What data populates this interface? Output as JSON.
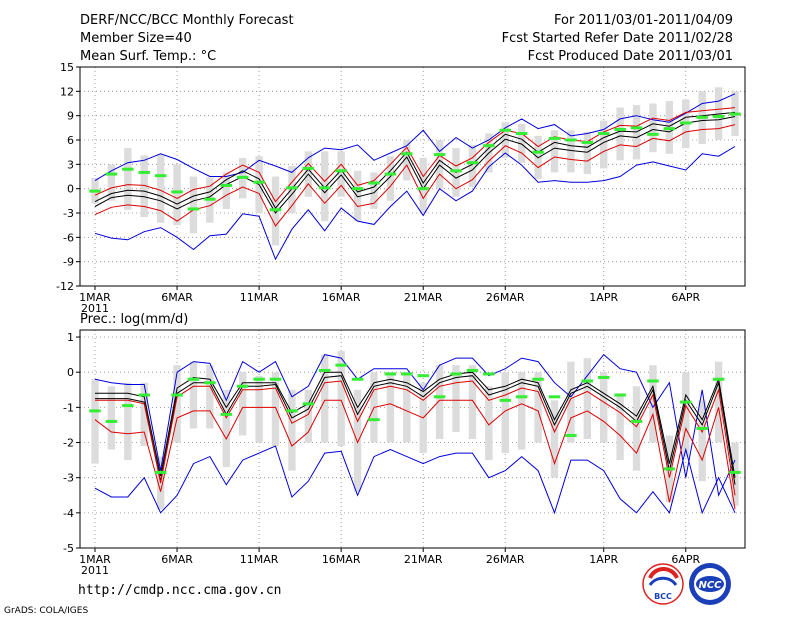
{
  "header": {
    "title": "DERF/NCC/BCC Monthly Forecast",
    "member_size": "Member Size=40",
    "variable_top": "Mean Surf. Temp.: °C",
    "period": "For 2011/03/01-2011/04/09",
    "refer_date": "Fcst Started Refer Date 2011/02/28",
    "produced_date": "Fcst Produced Date 2011/03/01"
  },
  "footer": {
    "url": "http://cmdp.ncc.cma.gov.cn",
    "grads": "GrADS: COLA/IGES",
    "logo_left_text": "BCC",
    "logo_right_text": "NCC"
  },
  "colors": {
    "spread": "#dcdcdc",
    "bound": "#0000dd",
    "red": "#dd0000",
    "mean": "#000000",
    "marker": "#33ee33",
    "grid": "#888888"
  },
  "chart_data": [
    {
      "type": "line",
      "title": "Mean Surf. Temp.: °C",
      "days": 40,
      "x_ticks": [
        {
          "day": 1,
          "label": "1MAR",
          "sub": "2011"
        },
        {
          "day": 6,
          "label": "6MAR"
        },
        {
          "day": 11,
          "label": "11MAR"
        },
        {
          "day": 16,
          "label": "16MAR"
        },
        {
          "day": 21,
          "label": "21MAR"
        },
        {
          "day": 26,
          "label": "26MAR"
        },
        {
          "day": 32,
          "label": "1APR"
        },
        {
          "day": 37,
          "label": "6APR"
        }
      ],
      "ylim": [
        -12,
        15
      ],
      "y_ticks": [
        -12,
        -9,
        -6,
        -3,
        0,
        3,
        6,
        9,
        12,
        15
      ],
      "series": [
        {
          "name": "upper",
          "values": [
            1.0,
            2.2,
            3.2,
            3.5,
            4.3,
            3.6,
            2.5,
            1.5,
            1.5,
            2.0,
            3.5,
            2.8,
            2.0,
            3.8,
            5.0,
            4.8,
            5.4,
            3.5,
            4.4,
            5.3,
            7.2,
            4.6,
            6.3,
            5.0,
            6.0,
            7.5,
            8.6,
            7.4,
            7.9,
            6.5,
            6.8,
            7.3,
            8.6,
            9.0,
            8.5,
            8.2,
            9.3,
            10.5,
            10.8,
            11.7
          ]
        },
        {
          "name": "mean",
          "values": [
            -2.2,
            -1.1,
            -0.8,
            -1.0,
            -1.5,
            -2.5,
            -1.5,
            -1.0,
            0.5,
            1.5,
            0.5,
            -3.0,
            -0.7,
            1.8,
            -0.5,
            1.7,
            -1.0,
            -0.5,
            1.5,
            3.9,
            0.0,
            2.9,
            1.3,
            2.3,
            4.4,
            6.1,
            5.5,
            3.8,
            5.0,
            4.7,
            4.5,
            5.7,
            6.5,
            6.3,
            7.3,
            7.0,
            8.1,
            8.4,
            8.5,
            8.9
          ]
        },
        {
          "name": "black2",
          "values": [
            -1.6,
            -0.6,
            -0.2,
            -0.3,
            -0.9,
            -1.9,
            -0.9,
            -0.4,
            1.1,
            2.2,
            1.2,
            -2.4,
            0.0,
            2.4,
            0.1,
            2.3,
            -0.4,
            0.2,
            2.2,
            4.5,
            0.7,
            3.5,
            2.0,
            3.0,
            5.0,
            6.7,
            6.1,
            4.5,
            5.7,
            5.3,
            5.1,
            6.3,
            7.1,
            7.0,
            8.0,
            7.7,
            8.8,
            9.0,
            9.2,
            9.4
          ]
        },
        {
          "name": "red_upper",
          "values": [
            -0.8,
            0.1,
            0.5,
            0.4,
            -0.2,
            -1.2,
            -0.1,
            0.3,
            1.8,
            2.9,
            2.0,
            -1.6,
            0.8,
            3.1,
            0.9,
            3.0,
            0.4,
            1.0,
            3.0,
            5.1,
            1.5,
            4.1,
            2.8,
            3.8,
            5.7,
            7.2,
            6.8,
            5.2,
            6.4,
            6.0,
            5.8,
            7.0,
            7.8,
            7.7,
            8.7,
            8.4,
            9.4,
            9.6,
            9.8,
            10.0
          ]
        },
        {
          "name": "red_lower",
          "values": [
            -3.2,
            -2.3,
            -2.0,
            -2.2,
            -2.7,
            -4.0,
            -2.6,
            -2.1,
            -0.8,
            0.2,
            -0.6,
            -4.6,
            -2.1,
            0.6,
            -1.8,
            0.4,
            -2.2,
            -1.8,
            0.3,
            2.9,
            -1.2,
            1.8,
            0.0,
            1.1,
            3.4,
            5.3,
            4.4,
            2.6,
            3.9,
            3.6,
            3.4,
            4.6,
            5.4,
            5.2,
            6.2,
            5.9,
            7.0,
            7.3,
            7.4,
            7.9
          ]
        },
        {
          "name": "lower",
          "values": [
            -5.5,
            -6.1,
            -6.3,
            -5.3,
            -4.8,
            -6.0,
            -7.5,
            -5.8,
            -5.6,
            -3.1,
            -3.4,
            -8.7,
            -5.0,
            -2.6,
            -5.2,
            -2.4,
            -4.0,
            -4.4,
            -2.2,
            -0.3,
            -3.3,
            0.0,
            -1.5,
            -0.3,
            2.7,
            4.4,
            2.9,
            0.8,
            1.0,
            0.8,
            0.8,
            1.0,
            1.5,
            2.9,
            3.3,
            2.8,
            2.3,
            4.3,
            4.0,
            5.2
          ]
        }
      ],
      "spread_bars": [
        {
          "lo": -1.8,
          "hi": 1.3
        },
        {
          "lo": -1.5,
          "hi": 3.0
        },
        {
          "lo": -2.6,
          "hi": 5.0
        },
        {
          "lo": -3.5,
          "hi": 4.1
        },
        {
          "lo": -4.2,
          "hi": 4.2
        },
        {
          "lo": -4.5,
          "hi": 3.0
        },
        {
          "lo": -5.5,
          "hi": 1.5
        },
        {
          "lo": -4.2,
          "hi": 1.4
        },
        {
          "lo": -2.5,
          "hi": 2.0
        },
        {
          "lo": -1.2,
          "hi": 3.8
        },
        {
          "lo": -3.0,
          "hi": 4.0
        },
        {
          "lo": -7.0,
          "hi": 1.5
        },
        {
          "lo": -3.0,
          "hi": 2.8
        },
        {
          "lo": -1.0,
          "hi": 4.6
        },
        {
          "lo": -4.0,
          "hi": 4.6
        },
        {
          "lo": -1.0,
          "hi": 4.6
        },
        {
          "lo": -4.0,
          "hi": 2.2
        },
        {
          "lo": -2.5,
          "hi": 2.0
        },
        {
          "lo": -1.5,
          "hi": 4.0
        },
        {
          "lo": 1.0,
          "hi": 6.0
        },
        {
          "lo": -3.0,
          "hi": 3.8
        },
        {
          "lo": 0.0,
          "hi": 6.0
        },
        {
          "lo": -1.0,
          "hi": 5.0
        },
        {
          "lo": 0.2,
          "hi": 5.4
        },
        {
          "lo": 2.0,
          "hi": 6.8
        },
        {
          "lo": 3.8,
          "hi": 8.2
        },
        {
          "lo": 3.2,
          "hi": 8.0
        },
        {
          "lo": 1.2,
          "hi": 6.5
        },
        {
          "lo": 2.0,
          "hi": 7.2
        },
        {
          "lo": 2.0,
          "hi": 7.2
        },
        {
          "lo": 1.8,
          "hi": 7.0
        },
        {
          "lo": 2.5,
          "hi": 8.4
        },
        {
          "lo": 3.5,
          "hi": 10.0
        },
        {
          "lo": 3.6,
          "hi": 10.3
        },
        {
          "lo": 4.5,
          "hi": 10.5
        },
        {
          "lo": 4.3,
          "hi": 10.8
        },
        {
          "lo": 5.0,
          "hi": 11.0
        },
        {
          "lo": 5.5,
          "hi": 12.0
        },
        {
          "lo": 6.0,
          "hi": 12.5
        },
        {
          "lo": 6.5,
          "hi": 12.0
        }
      ],
      "markers": [
        -0.3,
        1.8,
        2.4,
        2.0,
        1.6,
        -0.4,
        -2.5,
        -1.3,
        0.4,
        1.4,
        0.8,
        -2.6,
        0.1,
        2.5,
        0.1,
        2.2,
        0.0,
        0.7,
        1.8,
        4.3,
        0.0,
        4.2,
        2.2,
        3.2,
        5.3,
        7.2,
        6.8,
        4.5,
        6.2,
        6.0,
        5.7,
        6.8,
        7.3,
        7.5,
        6.7,
        7.4,
        8.1,
        8.8,
        8.9,
        9.2
      ]
    },
    {
      "type": "line",
      "title": "Prec.: log(mm/d)",
      "days": 40,
      "x_ticks": [
        {
          "day": 1,
          "label": "1MAR",
          "sub": "2011"
        },
        {
          "day": 6,
          "label": "6MAR"
        },
        {
          "day": 11,
          "label": "11MAR"
        },
        {
          "day": 16,
          "label": "16MAR"
        },
        {
          "day": 21,
          "label": "21MAR"
        },
        {
          "day": 26,
          "label": "26MAR"
        },
        {
          "day": 32,
          "label": "1APR"
        },
        {
          "day": 37,
          "label": "6APR"
        }
      ],
      "ylim": [
        -5,
        1.2
      ],
      "y_ticks": [
        -5,
        -4,
        -3,
        -2,
        -1,
        0,
        1
      ],
      "series": [
        {
          "name": "upper",
          "values": [
            -0.2,
            -0.3,
            -0.35,
            -0.35,
            -2.8,
            0.0,
            0.3,
            0.25,
            -0.8,
            0.3,
            0.0,
            0.3,
            -0.7,
            -0.4,
            0.5,
            0.4,
            -0.2,
            0.1,
            0.1,
            0.1,
            -0.5,
            0.2,
            0.4,
            0.4,
            -0.1,
            0.1,
            0.4,
            0.3,
            -0.3,
            -0.7,
            -0.1,
            0.5,
            0.1,
            0.0,
            -1.0,
            -0.3,
            -3.0,
            -0.5,
            -3.5,
            -2.5
          ]
        },
        {
          "name": "black2",
          "values": [
            -0.6,
            -0.6,
            -0.6,
            -0.7,
            -2.95,
            -0.45,
            -0.15,
            -0.2,
            -1.0,
            -0.3,
            -0.3,
            -0.3,
            -1.15,
            -0.9,
            0.0,
            0.0,
            -1.0,
            -0.3,
            -0.2,
            -0.3,
            -0.55,
            -0.2,
            -0.05,
            0.0,
            -0.5,
            -0.4,
            -0.2,
            -0.3,
            -1.35,
            -0.5,
            -0.3,
            -0.6,
            -0.9,
            -1.25,
            -0.4,
            -2.6,
            -0.65,
            -1.35,
            -0.2,
            -3.0
          ]
        },
        {
          "name": "mean",
          "values": [
            -0.75,
            -0.75,
            -0.75,
            -0.85,
            -3.1,
            -0.6,
            -0.3,
            -0.3,
            -1.2,
            -0.4,
            -0.4,
            -0.35,
            -1.3,
            -1.05,
            -0.15,
            -0.1,
            -1.2,
            -0.4,
            -0.3,
            -0.4,
            -0.7,
            -0.3,
            -0.15,
            -0.1,
            -0.65,
            -0.5,
            -0.3,
            -0.4,
            -1.5,
            -0.6,
            -0.4,
            -0.7,
            -1.0,
            -1.4,
            -0.5,
            -2.8,
            -0.8,
            -1.5,
            -0.3,
            -3.2
          ]
        },
        {
          "name": "red_upper",
          "values": [
            -0.8,
            -0.8,
            -0.8,
            -0.9,
            -3.15,
            -0.7,
            -0.4,
            -0.4,
            -1.3,
            -0.5,
            -0.5,
            -0.45,
            -1.45,
            -1.2,
            -0.3,
            -0.25,
            -1.4,
            -0.5,
            -0.4,
            -0.5,
            -0.8,
            -0.4,
            -0.3,
            -0.25,
            -0.8,
            -0.65,
            -0.45,
            -0.55,
            -1.7,
            -0.75,
            -0.55,
            -0.85,
            -1.15,
            -1.55,
            -0.65,
            -3.0,
            -0.95,
            -1.7,
            -0.5,
            -3.5
          ]
        },
        {
          "name": "red_lower",
          "values": [
            -1.35,
            -1.7,
            -1.75,
            -1.7,
            -3.4,
            -1.3,
            -1.1,
            -1.1,
            -1.9,
            -1.0,
            -1.0,
            -1.0,
            -2.1,
            -1.7,
            -0.8,
            -0.8,
            -2.0,
            -1.0,
            -0.9,
            -1.1,
            -1.3,
            -0.8,
            -0.8,
            -0.8,
            -1.5,
            -1.1,
            -0.9,
            -1.1,
            -2.6,
            -1.3,
            -1.1,
            -1.4,
            -1.8,
            -2.3,
            -1.2,
            -3.7,
            -1.6,
            -2.5,
            -1.0,
            -3.9
          ]
        },
        {
          "name": "lower",
          "values": [
            -3.3,
            -3.55,
            -3.55,
            -3.0,
            -4.0,
            -3.5,
            -2.6,
            -2.4,
            -3.2,
            -2.5,
            -2.3,
            -2.1,
            -3.55,
            -3.1,
            -2.3,
            -2.25,
            -3.5,
            -2.4,
            -2.2,
            -2.4,
            -2.6,
            -2.4,
            -2.3,
            -2.3,
            -3.0,
            -2.8,
            -2.4,
            -2.8,
            -4.0,
            -2.5,
            -2.5,
            -2.8,
            -3.6,
            -4.0,
            -3.4,
            -4.0,
            -2.2,
            -4.0,
            -3.0,
            -4.0
          ]
        }
      ],
      "spread_bars": [
        {
          "lo": -2.6,
          "hi": -0.2
        },
        {
          "lo": -2.2,
          "hi": -0.4
        },
        {
          "lo": -2.5,
          "hi": -0.3
        },
        {
          "lo": -2.1,
          "hi": -0.3
        },
        {
          "lo": -3.9,
          "hi": -2.4
        },
        {
          "lo": -2.0,
          "hi": 0.2
        },
        {
          "lo": -1.6,
          "hi": 0.3
        },
        {
          "lo": -1.6,
          "hi": 0.2
        },
        {
          "lo": -2.7,
          "hi": -0.5
        },
        {
          "lo": -1.8,
          "hi": 0.0
        },
        {
          "lo": -2.0,
          "hi": -0.1
        },
        {
          "lo": -2.1,
          "hi": 0.0
        },
        {
          "lo": -2.8,
          "hi": -0.5
        },
        {
          "lo": -2.0,
          "hi": -0.5
        },
        {
          "lo": -2.0,
          "hi": 0.5
        },
        {
          "lo": -2.1,
          "hi": 0.6
        },
        {
          "lo": -3.4,
          "hi": -0.5
        },
        {
          "lo": -2.0,
          "hi": 0.0
        },
        {
          "lo": -2.0,
          "hi": 0.0
        },
        {
          "lo": -2.0,
          "hi": 0.0
        },
        {
          "lo": -2.3,
          "hi": -0.3
        },
        {
          "lo": -1.9,
          "hi": 0.2
        },
        {
          "lo": -1.7,
          "hi": 0.2
        },
        {
          "lo": -1.9,
          "hi": 0.2
        },
        {
          "lo": -2.5,
          "hi": -0.4
        },
        {
          "lo": -2.3,
          "hi": 0.0
        },
        {
          "lo": -2.2,
          "hi": 0.0
        },
        {
          "lo": -2.0,
          "hi": 0.0
        },
        {
          "lo": -3.0,
          "hi": -0.8
        },
        {
          "lo": -2.0,
          "hi": 0.3
        },
        {
          "lo": -1.9,
          "hi": 0.4
        },
        {
          "lo": -2.0,
          "hi": 0.0
        },
        {
          "lo": -2.5,
          "hi": -0.6
        },
        {
          "lo": -2.8,
          "hi": -0.4
        },
        {
          "lo": -2.0,
          "hi": 0.2
        },
        {
          "lo": -3.7,
          "hi": -1.8
        },
        {
          "lo": -2.4,
          "hi": 0.0
        },
        {
          "lo": -3.1,
          "hi": -0.8
        },
        {
          "lo": -2.0,
          "hi": 0.3
        },
        {
          "lo": -3.8,
          "hi": -2.0
        }
      ],
      "markers": [
        -1.1,
        -1.4,
        -0.95,
        -0.65,
        -2.85,
        -0.65,
        -0.2,
        -0.3,
        -1.2,
        -0.4,
        -0.2,
        -0.2,
        -1.1,
        -0.9,
        0.05,
        0.2,
        -0.2,
        -1.35,
        -0.05,
        -0.05,
        -0.1,
        -0.7,
        -0.05,
        0.05,
        -0.05,
        -0.8,
        -0.7,
        -0.2,
        -0.7,
        -1.8,
        -0.25,
        -0.15,
        -0.65,
        -1.4,
        -0.25,
        -2.75,
        -0.85,
        -1.6,
        -0.2,
        -2.85
      ]
    }
  ]
}
